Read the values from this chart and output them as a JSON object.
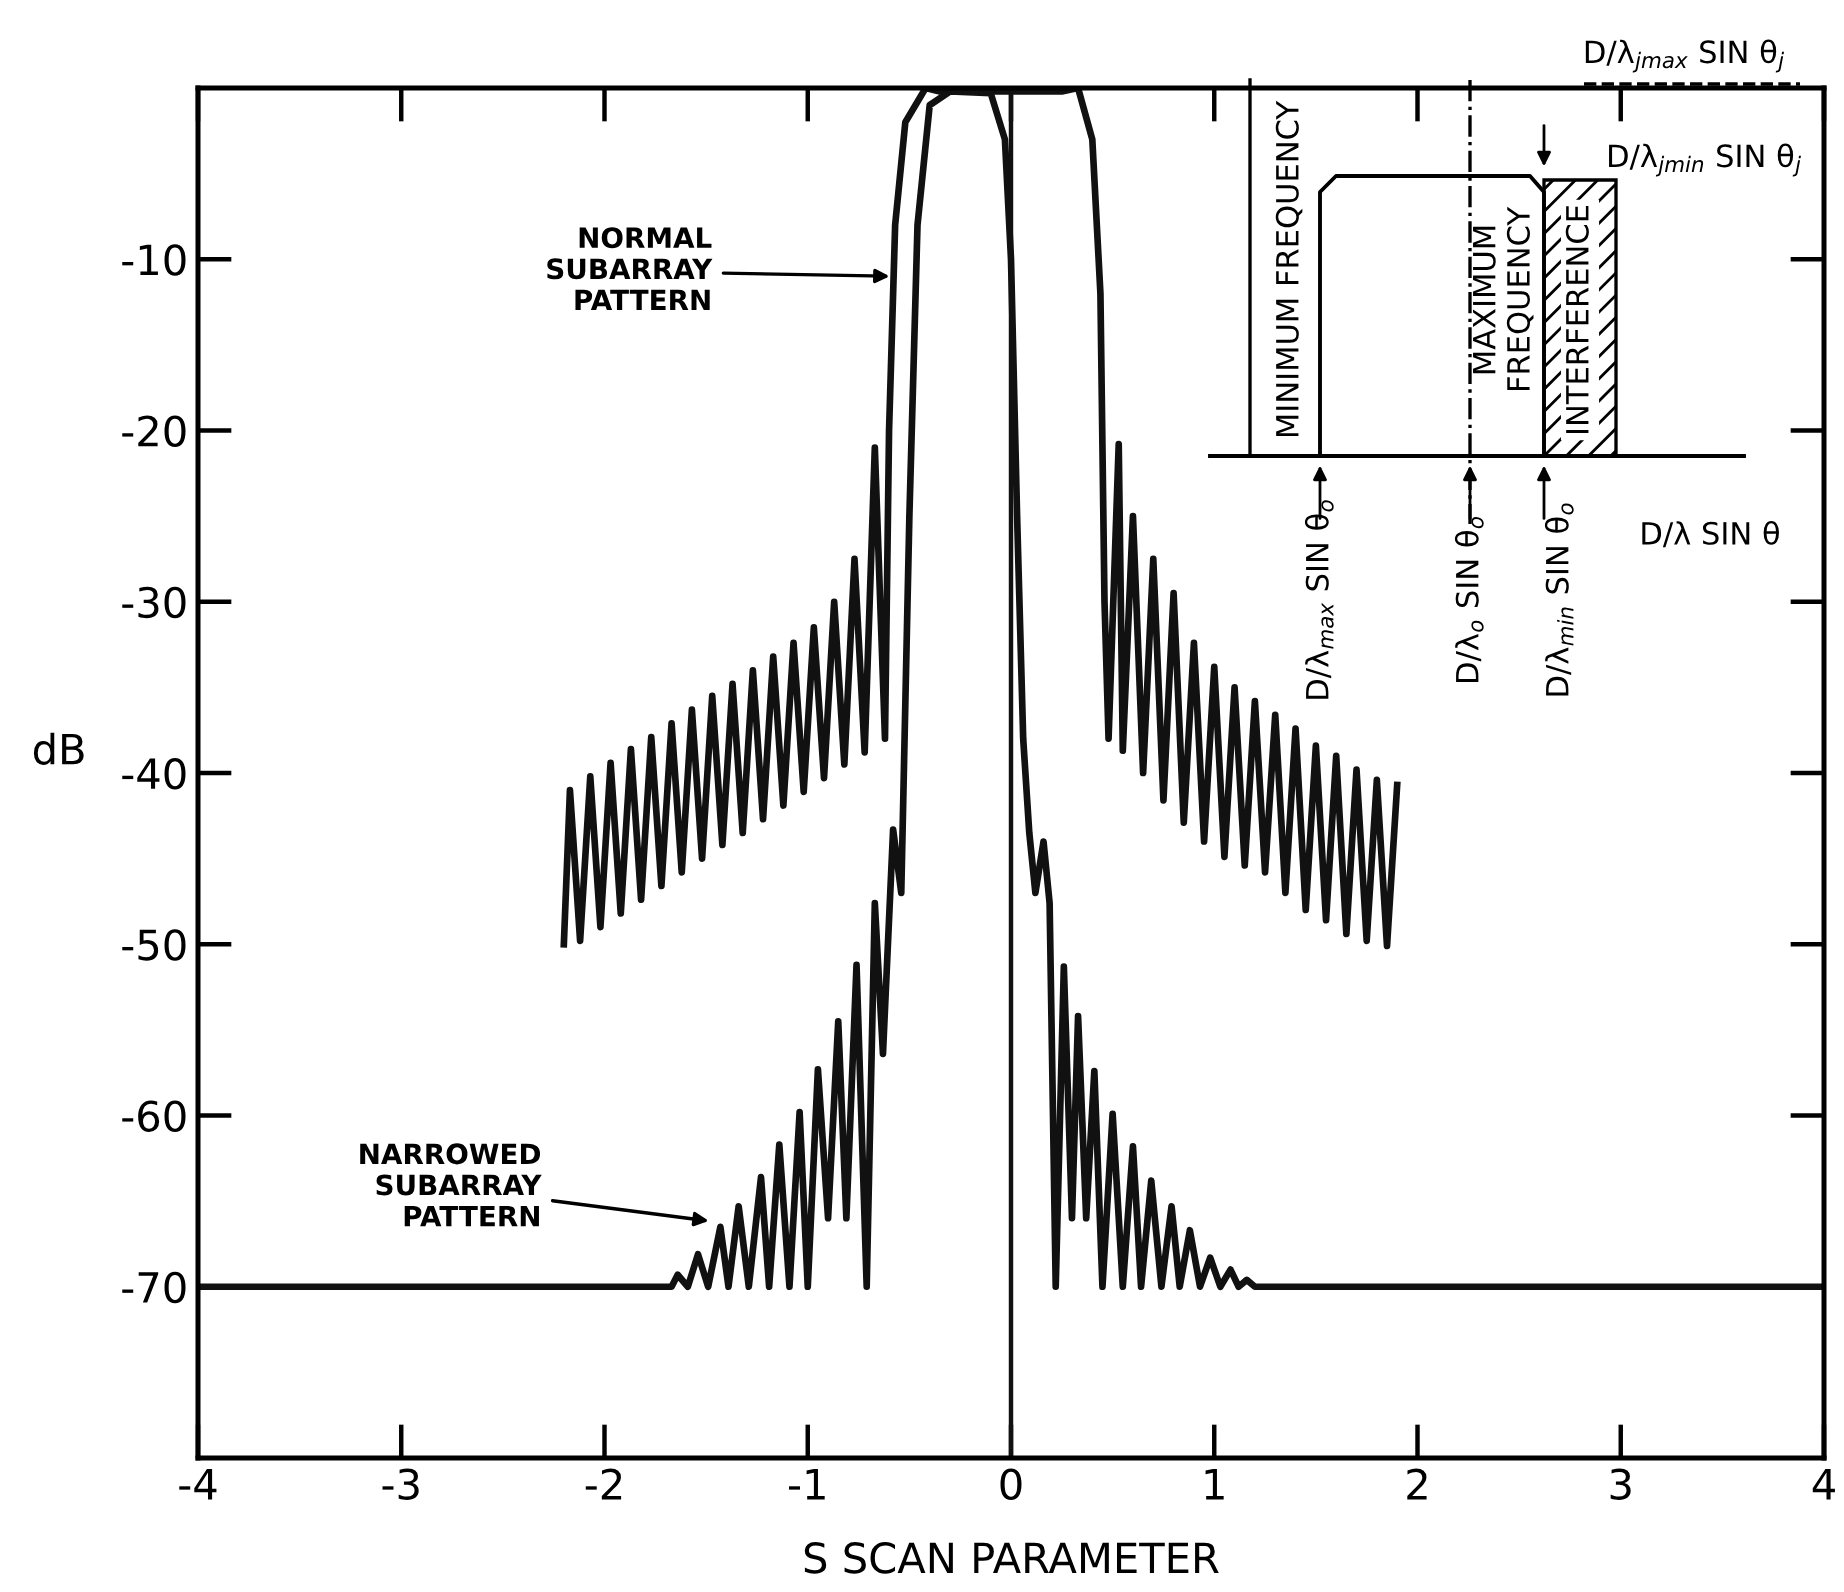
{
  "chart_data": {
    "type": "line",
    "xlabel": "S SCAN PARAMETER",
    "ylabel": "dB",
    "xlim": [
      -4,
      4
    ],
    "ylim": [
      -80,
      0
    ],
    "xticks": [
      -4,
      -3,
      -2,
      -1,
      0,
      1,
      2,
      3,
      4
    ],
    "yticks": [
      -10,
      -20,
      -30,
      -40,
      -50,
      -60,
      -70
    ],
    "grid": false,
    "legend": false,
    "marker": "none",
    "line_style": "solid",
    "series": [
      {
        "color": "#111111",
        "x": [
          -2.2,
          -2.17,
          -2.12,
          -2.07,
          -2.02,
          -1.97,
          -1.92,
          -1.87,
          -1.82,
          -1.77,
          -1.72,
          -1.67,
          -1.62,
          -1.57,
          -1.52,
          -1.47,
          -1.42,
          -1.37,
          -1.32,
          -1.27,
          -1.22,
          -1.17,
          -1.12,
          -1.07,
          -1.02,
          -0.97,
          -0.92,
          -0.87,
          -0.82,
          -0.77,
          -0.72,
          -0.67,
          -0.62,
          -0.6,
          -0.57,
          -0.52,
          -0.42,
          -0.35,
          0.25,
          0.33,
          0.4,
          0.44,
          0.46,
          0.48,
          0.53,
          0.55,
          0.6,
          0.65,
          0.7,
          0.75,
          0.8,
          0.85,
          0.9,
          0.95,
          1.0,
          1.05,
          1.1,
          1.15,
          1.2,
          1.25,
          1.3,
          1.35,
          1.4,
          1.45,
          1.5,
          1.55,
          1.6,
          1.65,
          1.7,
          1.75,
          1.8,
          1.85,
          1.9
        ],
        "values": [
          -50,
          -41,
          -49.8,
          -40.2,
          -49,
          -39.4,
          -48.2,
          -38.6,
          -47.4,
          -37.9,
          -46.6,
          -37.1,
          -45.8,
          -36.3,
          -45,
          -35.5,
          -44.2,
          -34.8,
          -43.5,
          -34,
          -42.7,
          -33.2,
          -41.9,
          -32.4,
          -41.1,
          -31.5,
          -40.3,
          -30,
          -39.5,
          -27.5,
          -38.8,
          -21,
          -38,
          -20,
          -8,
          -2,
          0,
          -0.2,
          -0.2,
          0,
          -3,
          -12,
          -30,
          -38,
          -20.8,
          -38.7,
          -25,
          -40,
          -27.5,
          -41.6,
          -29.5,
          -42.9,
          -32.4,
          -44,
          -33.8,
          -44.9,
          -35,
          -45.4,
          -35.8,
          -45.8,
          -36.6,
          -47,
          -37.4,
          -48,
          -38.4,
          -48.6,
          -39,
          -49.4,
          -39.8,
          -49.8,
          -40.4,
          -50.1,
          -40.7
        ]
      },
      {
        "color": "#111111",
        "x": [
          -4,
          -1.67,
          -1.64,
          -1.59,
          -1.54,
          -1.49,
          -1.43,
          -1.39,
          -1.34,
          -1.29,
          -1.23,
          -1.19,
          -1.14,
          -1.09,
          -1.04,
          -1.0,
          -0.95,
          -0.9,
          -0.85,
          -0.81,
          -0.76,
          -0.71,
          -0.67,
          -0.63,
          -0.58,
          -0.54,
          -0.5,
          -0.46,
          -0.4,
          -0.3,
          -0.1,
          -0.03,
          0.0,
          0.03,
          0.06,
          0.09,
          0.12,
          0.16,
          0.19,
          0.22,
          0.26,
          0.3,
          0.33,
          0.37,
          0.41,
          0.45,
          0.5,
          0.55,
          0.6,
          0.64,
          0.69,
          0.74,
          0.79,
          0.83,
          0.88,
          0.93,
          0.98,
          1.03,
          1.08,
          1.12,
          1.16,
          1.2,
          4
        ],
        "values": [
          -70,
          -70,
          -69.3,
          -70,
          -68.1,
          -70,
          -66.5,
          -70,
          -65.3,
          -70,
          -63.6,
          -70,
          -61.7,
          -70,
          -59.8,
          -70,
          -57.3,
          -66,
          -54.5,
          -66,
          -51.2,
          -70,
          -47.6,
          -56.4,
          -43.3,
          -47,
          -25,
          -8,
          -1,
          -0.2,
          -0.3,
          -3,
          -10,
          -25,
          -38,
          -43.5,
          -47,
          -44,
          -47.6,
          -70,
          -51.3,
          -66,
          -54.2,
          -66,
          -57.4,
          -70,
          -59.9,
          -70,
          -61.8,
          -70,
          -63.8,
          -70,
          -65.3,
          -70,
          -66.7,
          -70,
          -68.3,
          -70,
          -69,
          -70,
          -69.6,
          -70,
          -70
        ]
      }
    ],
    "ref_lines": [
      {
        "axis": "x",
        "value": 0,
        "color": "#111111",
        "line_style": "solid"
      }
    ],
    "annotations": [
      {
        "text": "NORMAL\nSUBARRAY\nPATTERN",
        "x": -0.57,
        "y": -11
      },
      {
        "text": "NARROWED\nSUBARRAY\nPATTERN",
        "x": -1.46,
        "y": -66.2
      },
      "MINIMUM FREQUENCY",
      "MAXIMUM\nFREQUENCY",
      "INTERFERENCE",
      "D/λ$_{max}$ SIN θ$_{o}$",
      "D/λ$_{o}$ SIN θ$_{o}$",
      "D/λ$_{min}$ SIN θ$_{o}$",
      "D/λ SIN θ",
      "D/λ$_{jmax}$ SIN θ$_{j}$",
      "D/λ$_{jmin}$ SIN θ$_{j}$"
    ]
  }
}
